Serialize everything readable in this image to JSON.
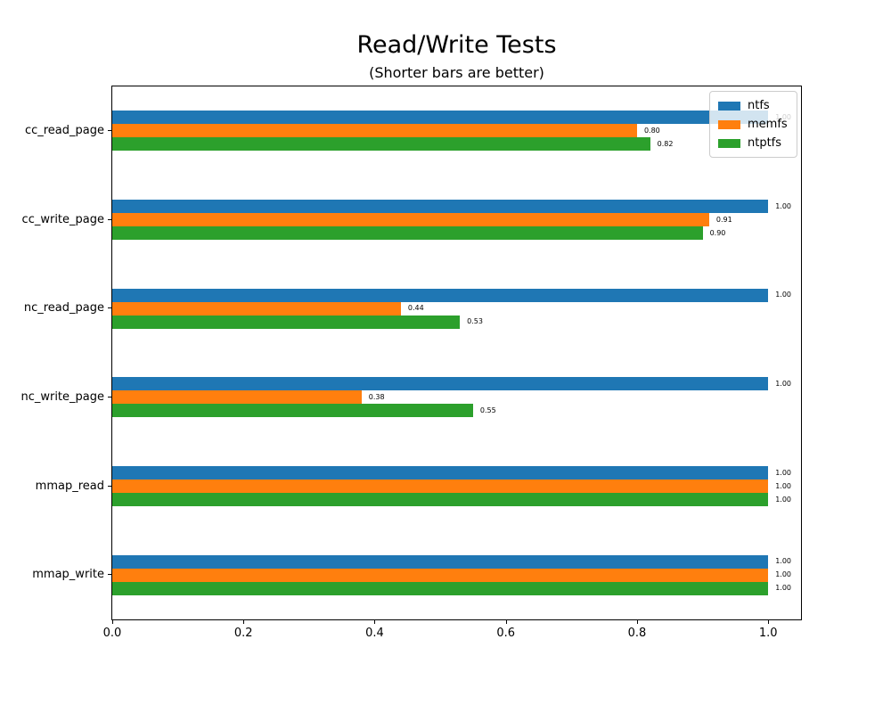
{
  "chart_data": {
    "type": "bar",
    "orientation": "horizontal",
    "title": "Read/Write Tests",
    "subtitle": "(Shorter bars are better)",
    "categories": [
      "cc_read_page",
      "cc_write_page",
      "nc_read_page",
      "nc_write_page",
      "mmap_read",
      "mmap_write"
    ],
    "series": [
      {
        "name": "ntfs",
        "color": "#1f77b4",
        "values": [
          1.0,
          1.0,
          1.0,
          1.0,
          1.0,
          1.0
        ]
      },
      {
        "name": "memfs",
        "color": "#ff7f0e",
        "values": [
          0.8,
          0.91,
          0.44,
          0.38,
          1.0,
          1.0
        ]
      },
      {
        "name": "ntptfs",
        "color": "#2ca02c",
        "values": [
          0.82,
          0.9,
          0.53,
          0.55,
          1.0,
          1.0
        ]
      }
    ],
    "value_label_decimals": 2,
    "x_ticks": [
      0.0,
      0.2,
      0.4,
      0.6,
      0.8,
      1.0
    ],
    "x_tick_labels": [
      "0.0",
      "0.2",
      "0.4",
      "0.6",
      "0.8",
      "1.0"
    ],
    "xlim": [
      0,
      1.05
    ],
    "grid": false,
    "legend": {
      "position": "upper right",
      "background_alpha": 0.8
    }
  }
}
